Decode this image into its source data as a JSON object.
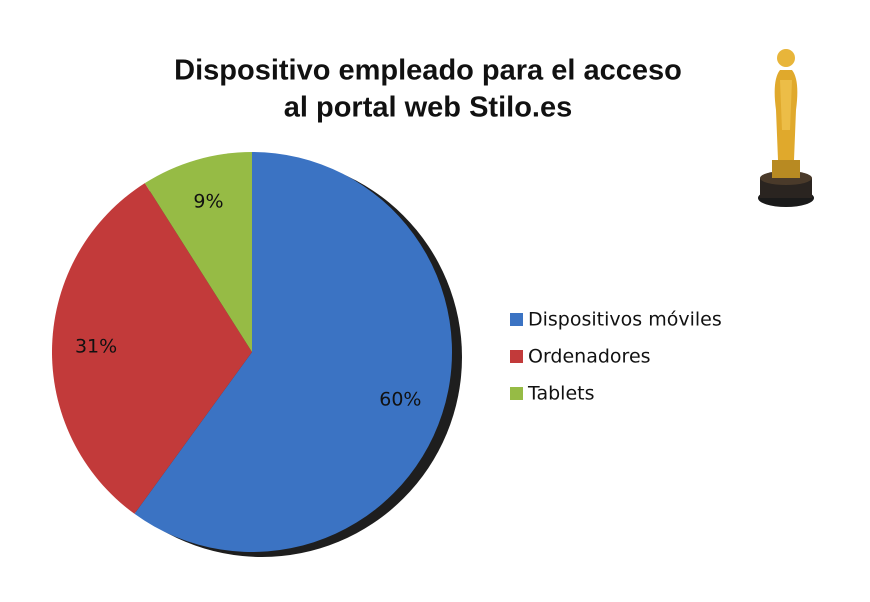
{
  "chart_data": {
    "type": "pie",
    "title": [
      "Dispositivo empleado para el acceso",
      "al portal web Stilo.es"
    ],
    "categories": [
      "Dispositivos móviles",
      "Ordenadores",
      "Tablets"
    ],
    "values": [
      60,
      31,
      9
    ],
    "value_labels": [
      "60%",
      "31%",
      "9%"
    ],
    "colors": [
      "#3b73c3",
      "#c23a3a",
      "#96bb45"
    ],
    "legend": "right"
  }
}
